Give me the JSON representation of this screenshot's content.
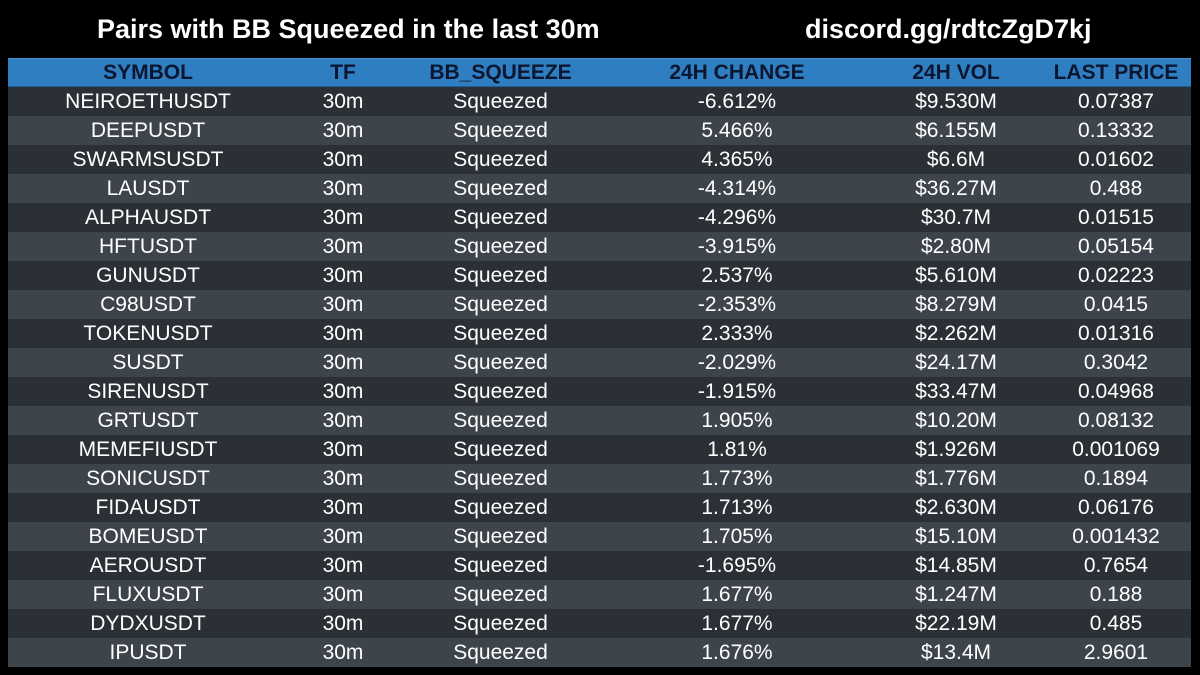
{
  "header": {
    "title": "Pairs with BB Squeezed in the last 30m",
    "link": "discord.gg/rdtcZgD7kj"
  },
  "table": {
    "columns": [
      "SYMBOL",
      "TF",
      "BB_SQUEEZE",
      "24H CHANGE",
      "24H VOL",
      "LAST PRICE"
    ],
    "rows": [
      [
        "NEIROETHUSDT",
        "30m",
        "Squeezed",
        "-6.612%",
        "$9.530M",
        "0.07387"
      ],
      [
        "DEEPUSDT",
        "30m",
        "Squeezed",
        "5.466%",
        "$6.155M",
        "0.13332"
      ],
      [
        "SWARMSUSDT",
        "30m",
        "Squeezed",
        "4.365%",
        "$6.6M",
        "0.01602"
      ],
      [
        "LAUSDT",
        "30m",
        "Squeezed",
        "-4.314%",
        "$36.27M",
        "0.488"
      ],
      [
        "ALPHAUSDT",
        "30m",
        "Squeezed",
        "-4.296%",
        "$30.7M",
        "0.01515"
      ],
      [
        "HFTUSDT",
        "30m",
        "Squeezed",
        "-3.915%",
        "$2.80M",
        "0.05154"
      ],
      [
        "GUNUSDT",
        "30m",
        "Squeezed",
        "2.537%",
        "$5.610M",
        "0.02223"
      ],
      [
        "C98USDT",
        "30m",
        "Squeezed",
        "-2.353%",
        "$8.279M",
        "0.0415"
      ],
      [
        "TOKENUSDT",
        "30m",
        "Squeezed",
        "2.333%",
        "$2.262M",
        "0.01316"
      ],
      [
        "SUSDT",
        "30m",
        "Squeezed",
        "-2.029%",
        "$24.17M",
        "0.3042"
      ],
      [
        "SIRENUSDT",
        "30m",
        "Squeezed",
        "-1.915%",
        "$33.47M",
        "0.04968"
      ],
      [
        "GRTUSDT",
        "30m",
        "Squeezed",
        "1.905%",
        "$10.20M",
        "0.08132"
      ],
      [
        "MEMEFIUSDT",
        "30m",
        "Squeezed",
        "1.81%",
        "$1.926M",
        "0.001069"
      ],
      [
        "SONICUSDT",
        "30m",
        "Squeezed",
        "1.773%",
        "$1.776M",
        "0.1894"
      ],
      [
        "FIDAUSDT",
        "30m",
        "Squeezed",
        "1.713%",
        "$2.630M",
        "0.06176"
      ],
      [
        "BOMEUSDT",
        "30m",
        "Squeezed",
        "1.705%",
        "$15.10M",
        "0.001432"
      ],
      [
        "AEROUSDT",
        "30m",
        "Squeezed",
        "-1.695%",
        "$14.85M",
        "0.7654"
      ],
      [
        "FLUXUSDT",
        "30m",
        "Squeezed",
        "1.677%",
        "$1.247M",
        "0.188"
      ],
      [
        "DYDXUSDT",
        "30m",
        "Squeezed",
        "1.677%",
        "$22.19M",
        "0.485"
      ],
      [
        "IPUSDT",
        "30m",
        "Squeezed",
        "1.676%",
        "$13.4M",
        "2.9601"
      ]
    ]
  }
}
